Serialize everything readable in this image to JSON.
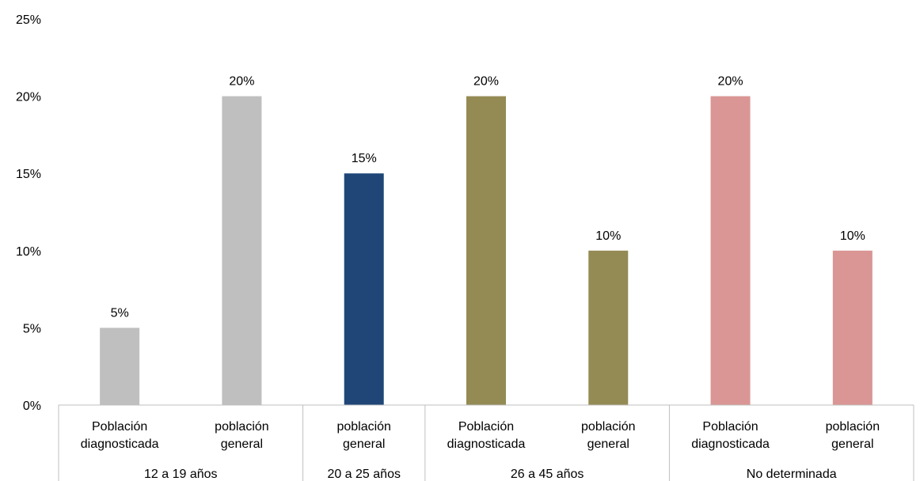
{
  "chart_data": {
    "type": "bar",
    "title": "",
    "xlabel": "",
    "ylabel": "",
    "ylim": [
      0,
      25
    ],
    "grid": false,
    "legend": "none",
    "y_ticks": [
      "0%",
      "5%",
      "10%",
      "15%",
      "20%",
      "25%"
    ],
    "y_tick_values": [
      0,
      5,
      10,
      15,
      20,
      25
    ],
    "groups": [
      {
        "label": "12 a 19 años",
        "bars": [
          {
            "category": [
              "Población",
              "diagnosticada"
            ],
            "value": 5,
            "data_label": "5%",
            "color": "#bfbfbf"
          },
          {
            "category": [
              "población",
              "general"
            ],
            "value": 20,
            "data_label": "20%",
            "color": "#bfbfbf"
          }
        ]
      },
      {
        "label": "20 a 25 años",
        "bars": [
          {
            "category": [
              "población",
              "general"
            ],
            "value": 15,
            "data_label": "15%",
            "color": "#1f4677"
          }
        ]
      },
      {
        "label": "26 a 45 años",
        "bars": [
          {
            "category": [
              "Población",
              "diagnosticada"
            ],
            "value": 20,
            "data_label": "20%",
            "color": "#948a54"
          },
          {
            "category": [
              "población",
              "general"
            ],
            "value": 10,
            "data_label": "10%",
            "color": "#948a54"
          }
        ]
      },
      {
        "label": "No determinada",
        "bars": [
          {
            "category": [
              "Población",
              "diagnosticada"
            ],
            "value": 20,
            "data_label": "20%",
            "color": "#d99694"
          },
          {
            "category": [
              "población",
              "general"
            ],
            "value": 10,
            "data_label": "10%",
            "color": "#d99694"
          }
        ]
      }
    ]
  }
}
